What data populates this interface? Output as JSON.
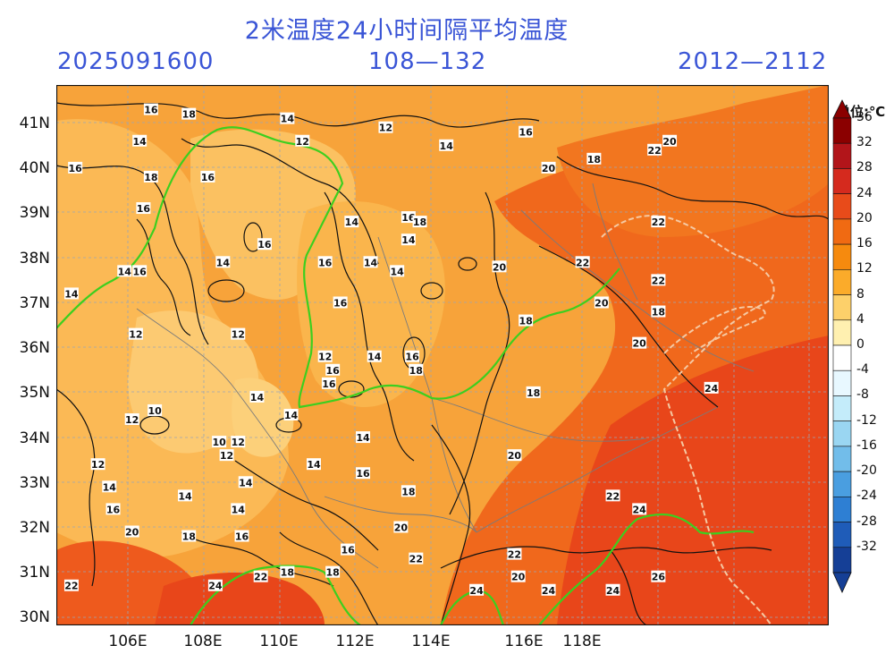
{
  "header": {
    "title": "2米温度24小时间隔平均温度",
    "init_time": "2025091600",
    "forecast_hours": "108—132",
    "valid_range": "2012—2112"
  },
  "axes": {
    "lat_labels": [
      "41N",
      "40N",
      "39N",
      "38N",
      "37N",
      "36N",
      "35N",
      "34N",
      "33N",
      "32N",
      "31N",
      "30N"
    ],
    "lon_labels": [
      "106E",
      "108E",
      "110E",
      "112E",
      "114E",
      "116E",
      "118E",
      "",
      "",
      ""
    ]
  },
  "colorbar": {
    "unit": "单位:℃",
    "levels": [
      "36",
      "32",
      "28",
      "24",
      "20",
      "16",
      "12",
      "8",
      "4",
      "0",
      "-4",
      "-8",
      "-12",
      "-16",
      "-20",
      "-24",
      "-28",
      "-32"
    ],
    "colors": [
      "#8b0000",
      "#b2151a",
      "#d52a1e",
      "#e84b1a",
      "#f06a12",
      "#f68a0e",
      "#fbab2a",
      "#fdd06a",
      "#fff0b0",
      "#ffffff",
      "#e8f8ff",
      "#c4ecfa",
      "#9ad6f2",
      "#72bdea",
      "#4a9ee0",
      "#2e7fd3",
      "#1f5cb8",
      "#153f96"
    ]
  },
  "contour_labels": [
    {
      "text": "16",
      "lon": 106.6,
      "lat": 41.3
    },
    {
      "text": "18",
      "lon": 107.6,
      "lat": 41.2
    },
    {
      "text": "14",
      "lon": 110.2,
      "lat": 41.1
    },
    {
      "text": "12",
      "lon": 112.8,
      "lat": 40.9
    },
    {
      "text": "16",
      "lon": 116.5,
      "lat": 40.8
    },
    {
      "text": "14",
      "lon": 106.3,
      "lat": 40.6
    },
    {
      "text": "12",
      "lon": 110.6,
      "lat": 40.6
    },
    {
      "text": "14",
      "lon": 114.4,
      "lat": 40.5
    },
    {
      "text": "22",
      "lon": 119.9,
      "lat": 40.4
    },
    {
      "text": "20",
      "lon": 120.3,
      "lat": 40.6
    },
    {
      "text": "16",
      "lon": 104.6,
      "lat": 40.0
    },
    {
      "text": "20",
      "lon": 117.1,
      "lat": 40.0
    },
    {
      "text": "18",
      "lon": 118.3,
      "lat": 40.2
    },
    {
      "text": "18",
      "lon": 106.6,
      "lat": 39.8
    },
    {
      "text": "16",
      "lon": 108.1,
      "lat": 39.8
    },
    {
      "text": "16",
      "lon": 106.4,
      "lat": 39.1
    },
    {
      "text": "14",
      "lon": 111.9,
      "lat": 38.8
    },
    {
      "text": "16",
      "lon": 113.4,
      "lat": 38.9
    },
    {
      "text": "18",
      "lon": 113.7,
      "lat": 38.8
    },
    {
      "text": "22",
      "lon": 120.0,
      "lat": 38.8
    },
    {
      "text": "16",
      "lon": 109.6,
      "lat": 38.3
    },
    {
      "text": "14",
      "lon": 113.4,
      "lat": 38.4
    },
    {
      "text": "16",
      "lon": 111.2,
      "lat": 37.9
    },
    {
      "text": "14",
      "lon": 112.4,
      "lat": 37.9
    },
    {
      "text": "14",
      "lon": 108.5,
      "lat": 37.9
    },
    {
      "text": "20",
      "lon": 115.8,
      "lat": 37.8
    },
    {
      "text": "22",
      "lon": 118.0,
      "lat": 37.9
    },
    {
      "text": "14",
      "lon": 105.9,
      "lat": 37.7
    },
    {
      "text": "16",
      "lon": 106.3,
      "lat": 37.7
    },
    {
      "text": "14",
      "lon": 113.1,
      "lat": 37.7
    },
    {
      "text": "22",
      "lon": 120.0,
      "lat": 37.5
    },
    {
      "text": "14",
      "lon": 104.5,
      "lat": 37.2
    },
    {
      "text": "16",
      "lon": 111.6,
      "lat": 37.0
    },
    {
      "text": "20",
      "lon": 118.5,
      "lat": 37.0
    },
    {
      "text": "18",
      "lon": 120.0,
      "lat": 36.8
    },
    {
      "text": "18",
      "lon": 116.5,
      "lat": 36.6
    },
    {
      "text": "12",
      "lon": 106.2,
      "lat": 36.3
    },
    {
      "text": "12",
      "lon": 108.9,
      "lat": 36.3
    },
    {
      "text": "20",
      "lon": 119.5,
      "lat": 36.1
    },
    {
      "text": "12",
      "lon": 111.2,
      "lat": 35.8
    },
    {
      "text": "14",
      "lon": 112.5,
      "lat": 35.8
    },
    {
      "text": "16",
      "lon": 113.5,
      "lat": 35.8
    },
    {
      "text": "16",
      "lon": 111.4,
      "lat": 35.5
    },
    {
      "text": "18",
      "lon": 113.6,
      "lat": 35.5
    },
    {
      "text": "16",
      "lon": 111.3,
      "lat": 35.2
    },
    {
      "text": "18",
      "lon": 116.7,
      "lat": 35.0
    },
    {
      "text": "24",
      "lon": 121.4,
      "lat": 35.1
    },
    {
      "text": "14",
      "lon": 109.4,
      "lat": 34.9
    },
    {
      "text": "10",
      "lon": 106.7,
      "lat": 34.6
    },
    {
      "text": "12",
      "lon": 106.1,
      "lat": 34.4
    },
    {
      "text": "14",
      "lon": 110.3,
      "lat": 34.5
    },
    {
      "text": "10",
      "lon": 108.4,
      "lat": 33.9
    },
    {
      "text": "12",
      "lon": 108.9,
      "lat": 33.9
    },
    {
      "text": "14",
      "lon": 112.2,
      "lat": 34.0
    },
    {
      "text": "12",
      "lon": 105.2,
      "lat": 33.4
    },
    {
      "text": "12",
      "lon": 108.6,
      "lat": 33.6
    },
    {
      "text": "20",
      "lon": 116.2,
      "lat": 33.6
    },
    {
      "text": "14",
      "lon": 110.9,
      "lat": 33.4
    },
    {
      "text": "16",
      "lon": 112.2,
      "lat": 33.2
    },
    {
      "text": "14",
      "lon": 105.5,
      "lat": 32.9
    },
    {
      "text": "14",
      "lon": 109.1,
      "lat": 33.0
    },
    {
      "text": "18",
      "lon": 113.4,
      "lat": 32.8
    },
    {
      "text": "14",
      "lon": 107.5,
      "lat": 32.7
    },
    {
      "text": "22",
      "lon": 118.8,
      "lat": 32.7
    },
    {
      "text": "16",
      "lon": 105.6,
      "lat": 32.4
    },
    {
      "text": "14",
      "lon": 108.9,
      "lat": 32.4
    },
    {
      "text": "24",
      "lon": 119.5,
      "lat": 32.4
    },
    {
      "text": "20",
      "lon": 113.2,
      "lat": 32.0
    },
    {
      "text": "20",
      "lon": 106.1,
      "lat": 31.9
    },
    {
      "text": "18",
      "lon": 107.6,
      "lat": 31.8
    },
    {
      "text": "16",
      "lon": 109.0,
      "lat": 31.8
    },
    {
      "text": "16",
      "lon": 111.8,
      "lat": 31.5
    },
    {
      "text": "22",
      "lon": 116.2,
      "lat": 31.4
    },
    {
      "text": "22",
      "lon": 113.6,
      "lat": 31.3
    },
    {
      "text": "18",
      "lon": 110.2,
      "lat": 31.0
    },
    {
      "text": "18",
      "lon": 111.4,
      "lat": 31.0
    },
    {
      "text": "22",
      "lon": 109.5,
      "lat": 30.9
    },
    {
      "text": "20",
      "lon": 116.3,
      "lat": 30.9
    },
    {
      "text": "26",
      "lon": 120.0,
      "lat": 30.9
    },
    {
      "text": "22",
      "lon": 104.5,
      "lat": 30.7
    },
    {
      "text": "24",
      "lon": 108.3,
      "lat": 30.7
    },
    {
      "text": "24",
      "lon": 115.2,
      "lat": 30.6
    },
    {
      "text": "24",
      "lon": 117.1,
      "lat": 30.6
    },
    {
      "text": "24",
      "lon": 118.8,
      "lat": 30.6
    }
  ]
}
